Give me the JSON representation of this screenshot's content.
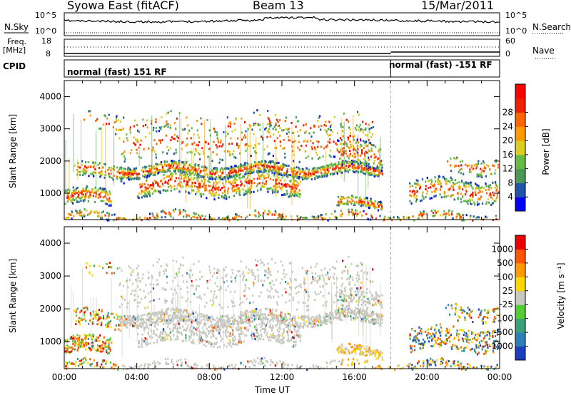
{
  "header": {
    "station": "Syowa East (fitACF)",
    "beam": "Beam 13",
    "date": "15/Mar/2011"
  },
  "status_panels": {
    "nsky_label": "N.Sky",
    "nsearch_label": "N.Search",
    "noise_ticks": [
      "10^5",
      "10^0"
    ],
    "freq_label_1": "Freq.",
    "freq_label_2": "[MHz]",
    "freq_ticks": [
      "18",
      "8"
    ],
    "nave_label": "Nave",
    "nave_ticks": [
      "60",
      "0"
    ],
    "cpid_label": "CPID",
    "cpid_segments": [
      {
        "label": "normal (fast) 151 RF",
        "start_hour": 0,
        "end_hour": 18
      },
      {
        "label": "normal (fast) -151 RF",
        "start_hour": 18,
        "end_hour": 24
      }
    ]
  },
  "chart_data": [
    {
      "type": "heatmap",
      "parameter": "Power",
      "ylabel": "Slant Range [km]",
      "xlabel": "Time UT",
      "xlim": [
        0,
        24
      ],
      "ylim": [
        180,
        4500
      ],
      "y_ticks": [
        1000,
        2000,
        3000,
        4000
      ],
      "x_ticks": [
        "00:00",
        "04:00",
        "08:00",
        "12:00",
        "16:00",
        "20:00",
        "00:00"
      ],
      "colorbar": {
        "label": "Power [dB]",
        "ticks": [
          "4",
          "8",
          "12",
          "16",
          "20",
          "24",
          "28"
        ],
        "colors": [
          "#0000ff",
          "#2255aa",
          "#4a9a55",
          "#66bb44",
          "#ddcc22",
          "#ff9900",
          "#ff6600",
          "#ee2200",
          "#ff0000"
        ]
      }
    },
    {
      "type": "heatmap",
      "parameter": "Velocity",
      "ylabel": "Slant Range [km]",
      "xlabel": "Time UT",
      "xlim": [
        0,
        24
      ],
      "ylim": [
        180,
        4500
      ],
      "y_ticks": [
        1000,
        2000,
        3000,
        4000
      ],
      "x_ticks": [
        "00:00",
        "04:00",
        "08:00",
        "12:00",
        "16:00",
        "20:00",
        "00:00"
      ],
      "colorbar": {
        "label": "Velocity [m s⁻¹]",
        "ticks": [
          "1000",
          "500",
          "100",
          "25",
          "-25",
          "-100",
          "-500",
          "-1000"
        ],
        "colors": [
          "#1a3fbf",
          "#2c7fb8",
          "#3aa07a",
          "#55cc33",
          "#c8c8c0",
          "#ffd700",
          "#ff9900",
          "#ff5500",
          "#ee0000"
        ]
      }
    }
  ]
}
